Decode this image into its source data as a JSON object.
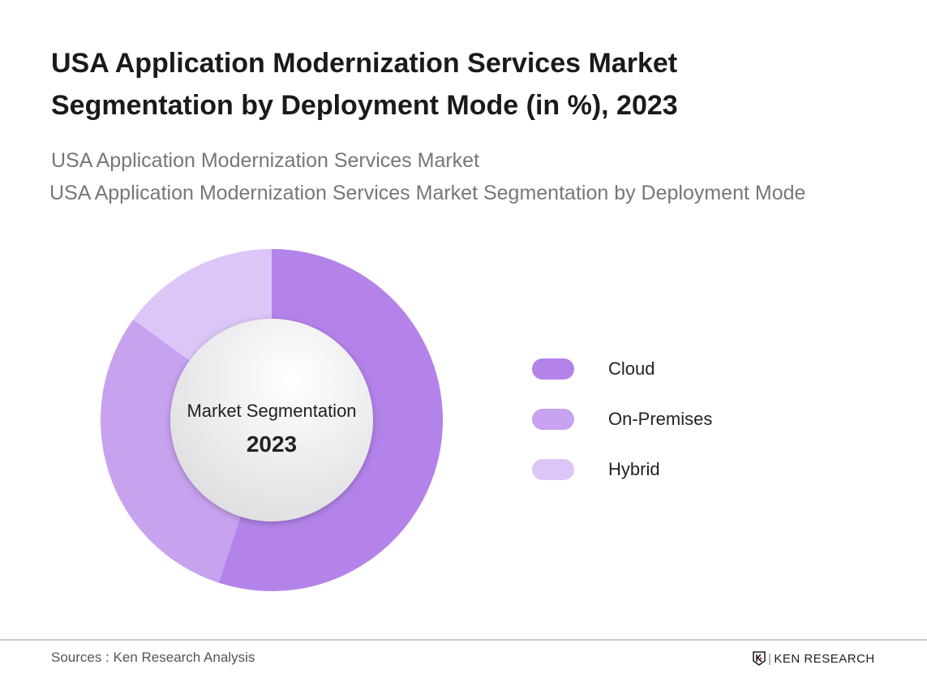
{
  "chart_data": {
    "type": "pie",
    "title": "USA Application Modernization Services Market Segmentation by Deployment Mode (in %), 2023",
    "subtitle_1": "USA Application Modernization Services Market",
    "subtitle_2": "USA Application Modernization Services Market Segmentation by Deployment Mode",
    "center_label": "Market Segmentation",
    "center_year": "2023",
    "categories": [
      "Cloud",
      "On-Premises",
      "Hybrid"
    ],
    "values": [
      55,
      30,
      15
    ],
    "colors": [
      "#b383ea",
      "#c7a2ef",
      "#dcc6f8"
    ],
    "legend_position": "right"
  },
  "footer": {
    "source": "Sources : Ken Research Analysis",
    "logo_text": "KEN RESEARCH"
  }
}
